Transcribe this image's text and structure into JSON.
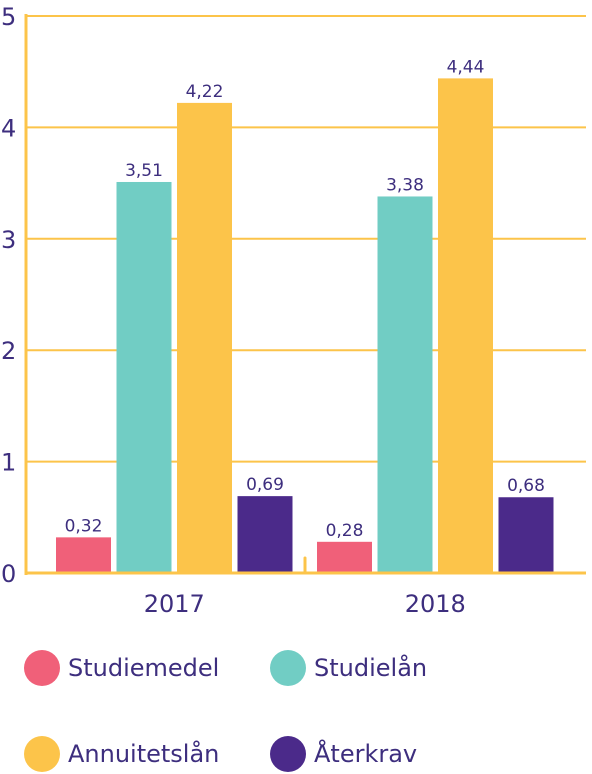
{
  "chart_data": {
    "type": "bar",
    "categories": [
      "2017",
      "2018"
    ],
    "series": [
      {
        "name": "Studiemedel",
        "values": [
          0.32,
          0.28
        ],
        "labels": [
          "0,32",
          "0,28"
        ],
        "color": "#f06079"
      },
      {
        "name": "Studielån",
        "values": [
          3.51,
          3.38
        ],
        "labels": [
          "3,51",
          "3,38"
        ],
        "color": "#71cdc4"
      },
      {
        "name": "Annuitetslån",
        "values": [
          4.22,
          4.44
        ],
        "labels": [
          "4,22",
          "4,44"
        ],
        "color": "#fcc44a"
      },
      {
        "name": "Återkrav",
        "values": [
          0.69,
          0.68
        ],
        "labels": [
          "0,69",
          "0,68"
        ],
        "color": "#4b2a8a"
      }
    ],
    "ylim": [
      0,
      5
    ],
    "yticks": [
      "0",
      "1",
      "2",
      "3",
      "4",
      "5"
    ],
    "grid": true,
    "legend": "bottom",
    "gridColor": "#fcc44a",
    "textColor": "#3d2e7e"
  }
}
